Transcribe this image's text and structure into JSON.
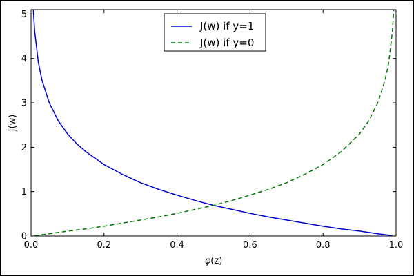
{
  "chart_data": {
    "type": "line",
    "title": "",
    "xlabel_prefix": "φ",
    "xlabel_suffix": "(z)",
    "ylabel": "J(w)",
    "xlim": [
      0.0,
      1.0
    ],
    "ylim": [
      0,
      5.1
    ],
    "xticks": [
      0.0,
      0.2,
      0.4,
      0.6,
      0.8,
      1.0
    ],
    "xtick_labels": [
      "0.0",
      "0.2",
      "0.4",
      "0.6",
      "0.8",
      "1.0"
    ],
    "yticks": [
      0,
      1,
      2,
      3,
      4,
      5
    ],
    "ytick_labels": [
      "0",
      "1",
      "2",
      "3",
      "4",
      "5"
    ],
    "grid": false,
    "legend_position": "top-center",
    "series": [
      {
        "name": "J(w) if y=1",
        "color": "#0000cc",
        "linestyle": "solid",
        "x": [
          0.006,
          0.01,
          0.02,
          0.03,
          0.05,
          0.075,
          0.1,
          0.125,
          0.15,
          0.2,
          0.25,
          0.3,
          0.35,
          0.4,
          0.45,
          0.5,
          0.55,
          0.6,
          0.65,
          0.7,
          0.75,
          0.8,
          0.85,
          0.9,
          0.95,
          0.99
        ],
        "y": [
          5.12,
          4.61,
          3.91,
          3.51,
          3.0,
          2.59,
          2.3,
          2.08,
          1.9,
          1.61,
          1.39,
          1.2,
          1.05,
          0.92,
          0.8,
          0.69,
          0.6,
          0.51,
          0.43,
          0.36,
          0.29,
          0.22,
          0.16,
          0.11,
          0.05,
          0.01
        ]
      },
      {
        "name": "J(w) if y=0",
        "color": "#007700",
        "linestyle": "dashed",
        "x": [
          0.01,
          0.05,
          0.1,
          0.15,
          0.2,
          0.25,
          0.3,
          0.35,
          0.4,
          0.45,
          0.5,
          0.55,
          0.6,
          0.65,
          0.7,
          0.75,
          0.8,
          0.85,
          0.9,
          0.925,
          0.95,
          0.97,
          0.98,
          0.99,
          0.994
        ],
        "y": [
          0.01,
          0.05,
          0.11,
          0.16,
          0.22,
          0.29,
          0.36,
          0.43,
          0.51,
          0.6,
          0.69,
          0.8,
          0.92,
          1.05,
          1.2,
          1.39,
          1.61,
          1.9,
          2.3,
          2.59,
          3.0,
          3.51,
          3.91,
          4.61,
          5.12
        ]
      }
    ]
  }
}
